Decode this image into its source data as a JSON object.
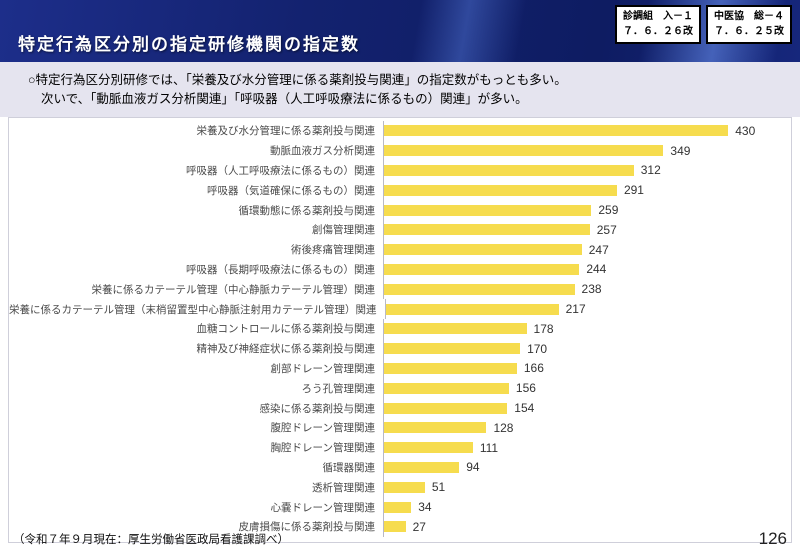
{
  "header": {
    "title": "特定行為区分別の指定研修機関の指定数",
    "stamps": [
      {
        "line1": "診調組　入－１",
        "line2": "７．６．２６改"
      },
      {
        "line1": "中医協　総－４",
        "line2": "７．６．２５改"
      }
    ]
  },
  "intro": {
    "line1": "○特定行為区分別研修では、「栄養及び水分管理に係る薬剤投与関連」の指定数がもっとも多い。",
    "line2": "次いで、「動脈血液ガス分析関連」「呼吸器（人工呼吸療法に係るもの）関連」が多い。"
  },
  "chart_data": {
    "type": "bar",
    "orientation": "horizontal",
    "title": "特定行為区分別の指定研修機関の指定数",
    "categories": [
      "栄養及び水分管理に係る薬剤投与関連",
      "動脈血液ガス分析関連",
      "呼吸器（人工呼吸療法に係るもの）関連",
      "呼吸器（気道確保に係るもの）関連",
      "循環動態に係る薬剤投与関連",
      "創傷管理関連",
      "術後疼痛管理関連",
      "呼吸器（長期呼吸療法に係るもの）関連",
      "栄養に係るカテーテル管理（中心静脈カテーテル管理）関連",
      "栄養に係るカテーテル管理（末梢留置型中心静脈注射用カテーテル管理）関連",
      "血糖コントロールに係る薬剤投与関連",
      "精神及び神経症状に係る薬剤投与関連",
      "創部ドレーン管理関連",
      "ろう孔管理関連",
      "感染に係る薬剤投与関連",
      "腹腔ドレーン管理関連",
      "胸腔ドレーン管理関連",
      "循環器関連",
      "透析管理関連",
      "心嚢ドレーン管理関連",
      "皮膚損傷に係る薬剤投与関連"
    ],
    "values": [
      430,
      349,
      312,
      291,
      259,
      257,
      247,
      244,
      238,
      217,
      178,
      170,
      166,
      156,
      154,
      128,
      111,
      94,
      51,
      34,
      27
    ],
    "value_labels_shown": true,
    "axis_max": 430,
    "grid": false,
    "legend": false,
    "bar_color": "#f6dc4e",
    "axis_line_color": "#b9b9c4",
    "label_color": "#4a4a4a",
    "value_label_color": "#333333"
  },
  "footer": {
    "source_note": "（令和７年９月現在：厚生労働省医政局看護課調べ）",
    "page_number": "126"
  },
  "colors": {
    "header_bg": "#13226f",
    "intro_bg": "#e5e4ef",
    "panel_bg": "#ffffff",
    "panel_border": "#cfcfda"
  }
}
